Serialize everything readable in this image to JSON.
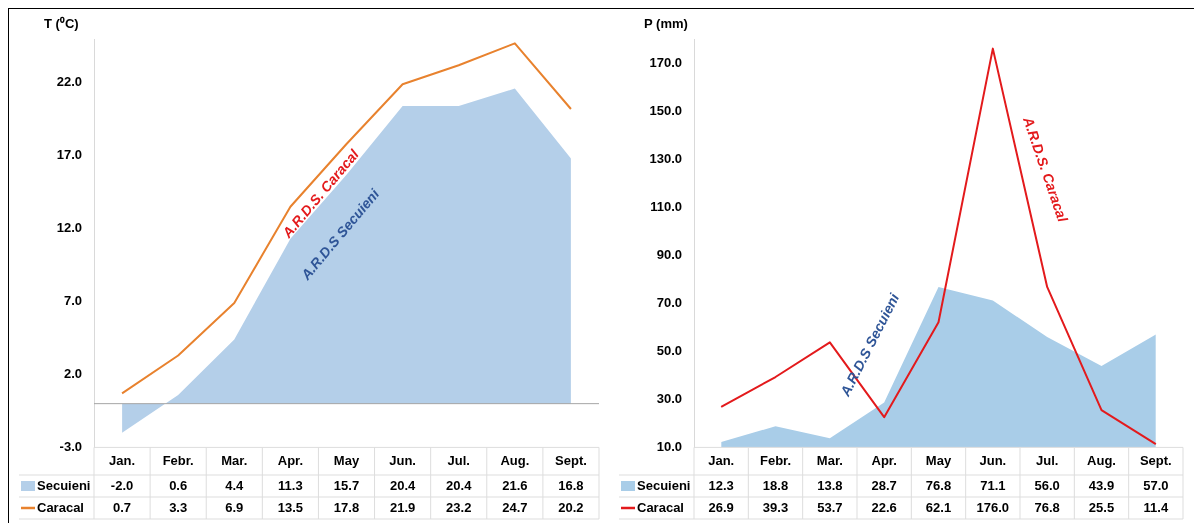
{
  "chart_data": [
    {
      "type": "area",
      "ylabel": "T (⁰C)",
      "categories": [
        "Jan.",
        "Febr.",
        "Mar.",
        "Apr.",
        "May",
        "Jun.",
        "Jul.",
        "Aug.",
        "Sept."
      ],
      "series": [
        {
          "name": "Secuieni",
          "type": "area",
          "color": "#b4cfe9",
          "values": [
            -2.0,
            0.6,
            4.4,
            11.3,
            15.7,
            20.4,
            20.4,
            21.6,
            16.8
          ],
          "value_labels": [
            "-2.0",
            "0.6",
            "4.4",
            "11.3",
            "15.7",
            "20.4",
            "20.4",
            "21.6",
            "16.8"
          ]
        },
        {
          "name": "Caracal",
          "type": "line",
          "color": "#e8822e",
          "values": [
            0.7,
            3.3,
            6.9,
            13.5,
            17.8,
            21.9,
            23.2,
            24.7,
            20.2
          ],
          "value_labels": [
            "0.7",
            "3.3",
            "6.9",
            "13.5",
            "17.8",
            "21.9",
            "23.2",
            "24.7",
            "20.2"
          ]
        }
      ],
      "ylim": [
        -3,
        25
      ],
      "yticks": [
        {
          "value": -3,
          "label": "-3.0"
        },
        {
          "value": 2,
          "label": "2.0"
        },
        {
          "value": 7,
          "label": "7.0"
        },
        {
          "value": 12,
          "label": "12.0"
        },
        {
          "value": 17,
          "label": "17.0"
        },
        {
          "value": 22,
          "label": "22.0"
        }
      ],
      "ref_lines": [
        {
          "axis": "y",
          "value": 0,
          "color": "#a6a6a6"
        }
      ],
      "annotations": [
        "A.R.D.S. Caracal",
        "A.R.D.S Secuieni"
      ],
      "grid": false,
      "marker": "none",
      "legend": "bottom left"
    },
    {
      "type": "area",
      "ylabel": "P (mm)",
      "categories": [
        "Jan.",
        "Febr.",
        "Mar.",
        "Apr.",
        "May",
        "Jun.",
        "Jul.",
        "Aug.",
        "Sept."
      ],
      "series": [
        {
          "name": "Secuieni",
          "type": "area",
          "color": "#a9cde8",
          "values": [
            12.3,
            18.8,
            13.8,
            28.7,
            76.8,
            71.1,
            56.0,
            43.9,
            57.0
          ],
          "value_labels": [
            "12.3",
            "18.8",
            "13.8",
            "28.7",
            "76.8",
            "71.1",
            "56.0",
            "43.9",
            "57.0"
          ]
        },
        {
          "name": "Caracal",
          "type": "line",
          "color": "#e31a1c",
          "values": [
            26.9,
            39.3,
            53.7,
            22.6,
            62.1,
            176.0,
            76.8,
            25.5,
            11.4
          ],
          "value_labels": [
            "26.9",
            "39.3",
            "53.7",
            "22.6",
            "62.1",
            "176.0",
            "76.8",
            "25.5",
            "11.4"
          ]
        }
      ],
      "ylim": [
        10,
        180
      ],
      "yticks": [
        {
          "value": 10,
          "label": "10.0"
        },
        {
          "value": 30,
          "label": "30.0"
        },
        {
          "value": 50,
          "label": "50.0"
        },
        {
          "value": 70,
          "label": "70.0"
        },
        {
          "value": 90,
          "label": "90.0"
        },
        {
          "value": 110,
          "label": "110.0"
        },
        {
          "value": 130,
          "label": "130.0"
        },
        {
          "value": 150,
          "label": "150.0"
        },
        {
          "value": 170,
          "label": "170.0"
        }
      ],
      "annotations": [
        "A.R.D.S Secuieni",
        "A.R.D.S. Caracal"
      ],
      "grid": false,
      "marker": "none",
      "legend": "bottom left"
    }
  ]
}
